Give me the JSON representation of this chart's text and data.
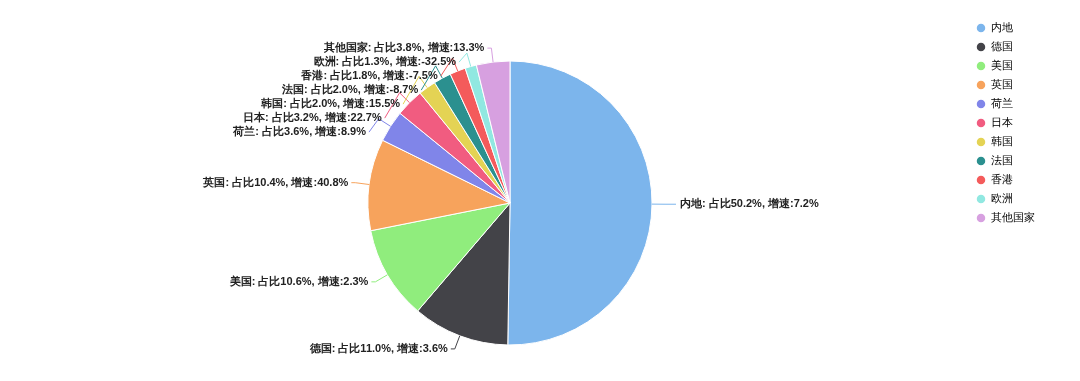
{
  "chart_data": {
    "type": "pie",
    "categories": [
      "内地",
      "德国",
      "美国",
      "英国",
      "荷兰",
      "日本",
      "韩国",
      "法国",
      "香港",
      "欧洲",
      "其他国家"
    ],
    "values": [
      50.2,
      11.0,
      10.6,
      10.4,
      3.6,
      3.2,
      2.0,
      2.0,
      1.8,
      1.3,
      3.8
    ],
    "colors": [
      "#7cb5ec",
      "#434348",
      "#90ed7d",
      "#f7a35c",
      "#8085e9",
      "#f15c80",
      "#e4d354",
      "#2b908f",
      "#f45b5b",
      "#91e8e1",
      "#d7a0e0"
    ],
    "value_labels": [
      "内地: 占比50.2%, 增速:7.2%",
      "德国: 占比11.0%, 增速:3.6%",
      "美国: 占比10.6%, 增速:2.3%",
      "英国: 占比10.4%, 增速:40.8%",
      "荷兰: 占比3.6%, 增速:8.9%",
      "日本: 占比3.2%, 增速:22.7%",
      "韩国: 占比2.0%, 增速:15.5%",
      "法国: 占比2.0%, 增速:-8.7%",
      "香港: 占比1.8%, 增速:-7.5%",
      "欧洲: 占比1.3%, 增速:-32.5%",
      "其他国家: 占比3.8%, 增速:13.3%"
    ],
    "legend": "top right"
  }
}
